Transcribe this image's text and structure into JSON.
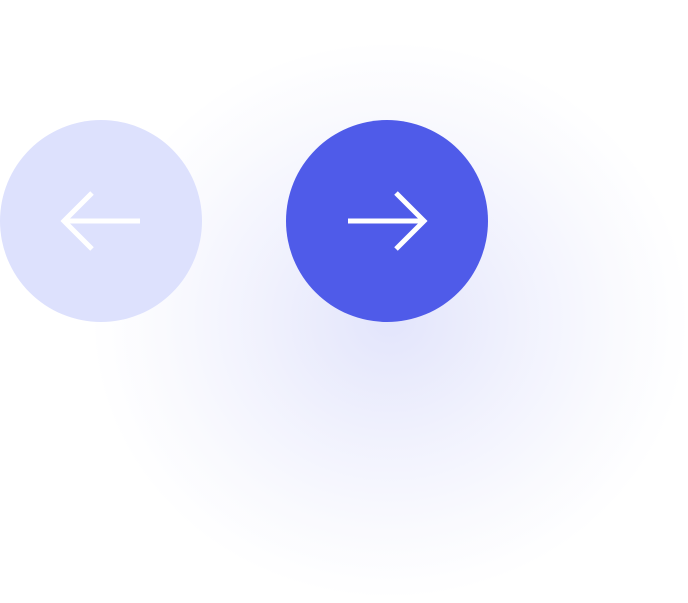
{
  "carousel_nav": {
    "prev_button": {
      "icon": "arrow-left-icon",
      "background": "#dde1fd",
      "icon_color": "#ffffff",
      "state": "disabled"
    },
    "next_button": {
      "icon": "arrow-right-icon",
      "background": "#4f5be9",
      "icon_color": "#ffffff",
      "state": "active"
    },
    "glow_color": "#4f5be9"
  }
}
